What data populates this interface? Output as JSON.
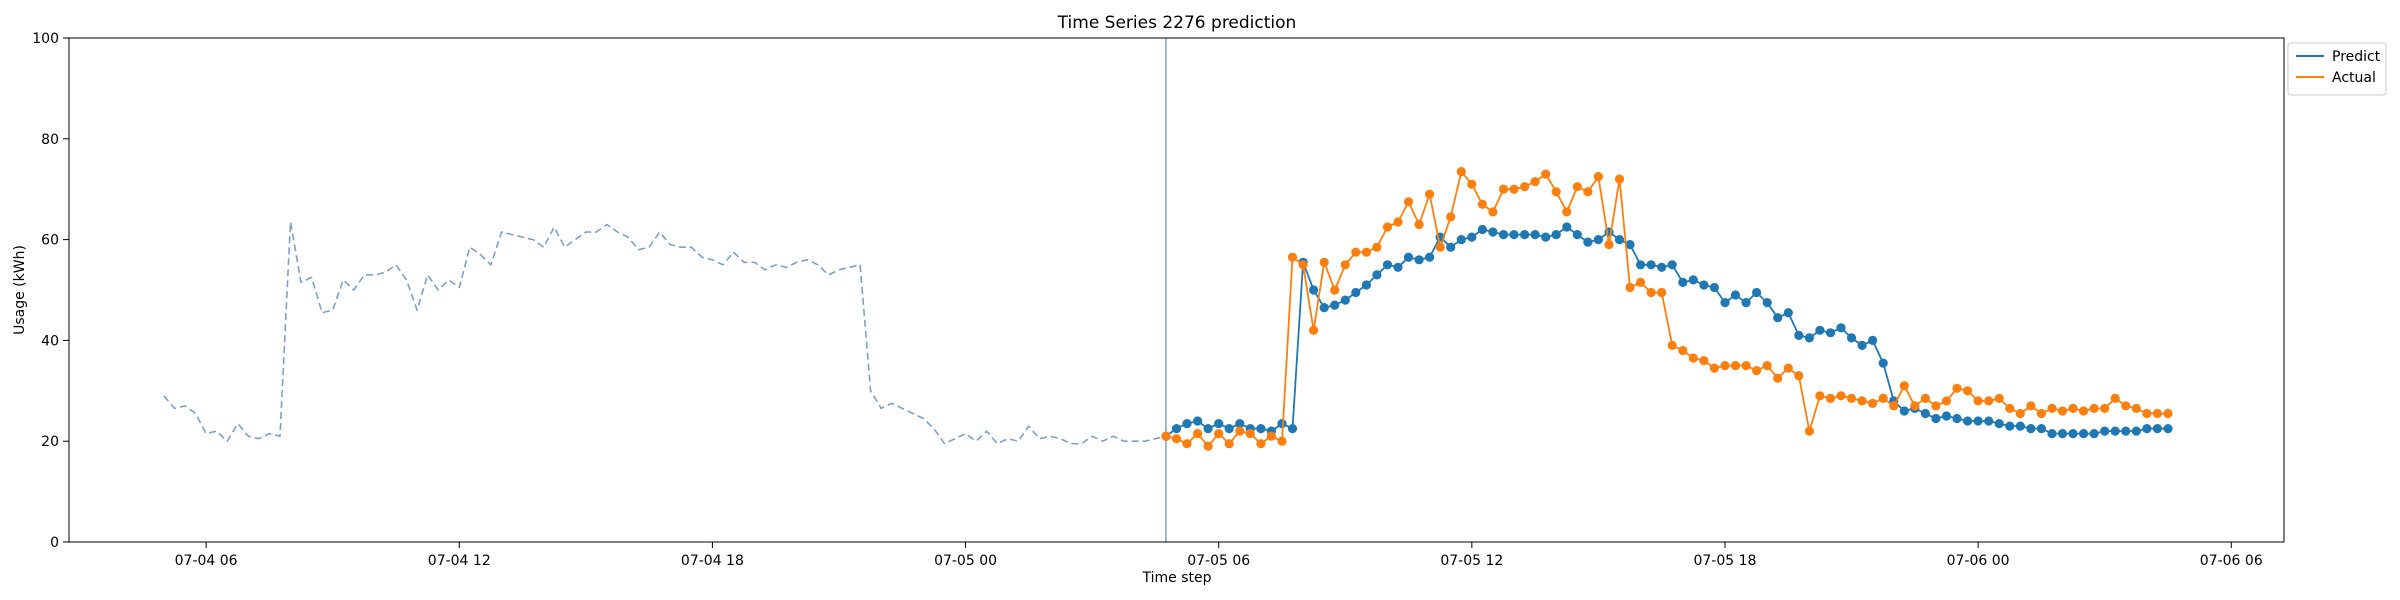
{
  "chart_data": {
    "type": "line",
    "title": "Time Series 2276 prediction",
    "xlabel": "Time step",
    "ylabel": "Usage (kWh)",
    "ylim": [
      0,
      100
    ],
    "xlim": [
      "2024-07-04T02:45",
      "2024-07-06T07:15"
    ],
    "x_ticks": [
      {
        "t": "2024-07-04T06:00",
        "label": "07-04 06"
      },
      {
        "t": "2024-07-04T12:00",
        "label": "07-04 12"
      },
      {
        "t": "2024-07-04T18:00",
        "label": "07-04 18"
      },
      {
        "t": "2024-07-05T00:00",
        "label": "07-05 00"
      },
      {
        "t": "2024-07-05T06:00",
        "label": "07-05 06"
      },
      {
        "t": "2024-07-05T12:00",
        "label": "07-05 12"
      },
      {
        "t": "2024-07-05T18:00",
        "label": "07-05 18"
      },
      {
        "t": "2024-07-06T00:00",
        "label": "07-06 00"
      },
      {
        "t": "2024-07-06T06:00",
        "label": "07-06 06"
      }
    ],
    "y_ticks": [
      0,
      20,
      40,
      60,
      80,
      100
    ],
    "forecast_start": "2024-07-05T04:45",
    "grid": false,
    "legend_position": "top-right",
    "series": [
      {
        "name": "",
        "style": "dashed",
        "color": "#7f9fc8",
        "start": "2024-07-04T05:00",
        "step_minutes": 15,
        "values": [
          29,
          26.5,
          27,
          25.5,
          21.5,
          22,
          20,
          23.5,
          21,
          20.5,
          21.5,
          21,
          63.5,
          51.5,
          52.5,
          45.5,
          46,
          52,
          50,
          53,
          53,
          53.5,
          55,
          52,
          46,
          53,
          50,
          52,
          50.5,
          58.5,
          57,
          55,
          61.5,
          61,
          60.5,
          60,
          58.5,
          62.5,
          58.5,
          60,
          61.5,
          61.5,
          63,
          61.5,
          60.5,
          58,
          58.5,
          61.5,
          59,
          58.5,
          58.5,
          56.5,
          56,
          55,
          57.5,
          55.5,
          55.5,
          54,
          55,
          54.5,
          55.5,
          56,
          55,
          53,
          54,
          54.5,
          55,
          30,
          26.5,
          27.5,
          26.5,
          25.5,
          24.5,
          22.5,
          19.5,
          20.5,
          21.5,
          20,
          22,
          19.5,
          20.5,
          20,
          23,
          20.5,
          21,
          20.5,
          19.5,
          19.5,
          21,
          20,
          21,
          20,
          20,
          20,
          20.5,
          21
        ]
      },
      {
        "name": "Predict",
        "style": "solid-markers",
        "color": "#1f77b4",
        "start": "2024-07-05T04:45",
        "step_minutes": 15,
        "values": [
          21,
          22.5,
          23.5,
          24,
          22.5,
          23.5,
          22.5,
          23.5,
          22.5,
          22.5,
          22,
          23.5,
          22.5,
          55.5,
          50,
          46.5,
          47,
          48,
          49.5,
          51,
          53,
          55,
          54.5,
          56.5,
          56,
          56.5,
          60.5,
          58.5,
          60,
          60.5,
          62,
          61.5,
          61,
          61,
          61,
          61,
          60.5,
          61,
          62.5,
          61,
          59.5,
          60,
          61.5,
          60,
          59,
          55,
          55,
          54.5,
          55,
          51.5,
          52,
          51,
          50.5,
          47.5,
          49,
          47.5,
          49.5,
          47.5,
          44.5,
          45.5,
          41,
          40.5,
          42,
          41.5,
          42.5,
          40.5,
          39,
          40,
          35.5,
          28,
          26,
          26.5,
          25.5,
          24.5,
          25,
          24.5,
          24,
          24,
          24,
          23.5,
          23,
          23,
          22.5,
          22.5,
          21.5,
          21.5,
          21.5,
          21.5,
          21.5,
          22,
          22,
          22,
          22,
          22.5,
          22.5,
          22.5
        ]
      },
      {
        "name": "Actual",
        "style": "solid-markers",
        "color": "#ff7f0e",
        "start": "2024-07-05T04:45",
        "step_minutes": 15,
        "values": [
          21,
          20.5,
          19.5,
          21.5,
          19,
          21.5,
          19.5,
          22,
          21.5,
          19.5,
          21,
          20,
          56.5,
          55,
          42,
          55.5,
          50,
          55,
          57.5,
          57.5,
          58.5,
          62.5,
          63.5,
          67.5,
          63,
          69,
          58.5,
          64.5,
          73.5,
          71,
          67,
          65.5,
          70,
          70,
          70.5,
          71.5,
          73,
          69.5,
          65.5,
          70.5,
          69.5,
          72.5,
          59,
          72,
          50.5,
          51.5,
          49.5,
          49.5,
          39,
          38,
          36.5,
          36,
          34.5,
          35,
          35,
          35,
          34,
          35,
          32.5,
          34.5,
          33,
          22,
          29,
          28.5,
          29,
          28.5,
          28,
          27.5,
          28.5,
          27,
          31,
          27,
          28.5,
          27,
          28,
          30.5,
          30,
          28,
          28,
          28.5,
          26.5,
          25.5,
          27,
          25.5,
          26.5,
          26,
          26.5,
          26,
          26.5,
          26.5,
          28.5,
          27,
          26.5,
          25.5,
          25.5,
          25.5
        ]
      }
    ]
  }
}
